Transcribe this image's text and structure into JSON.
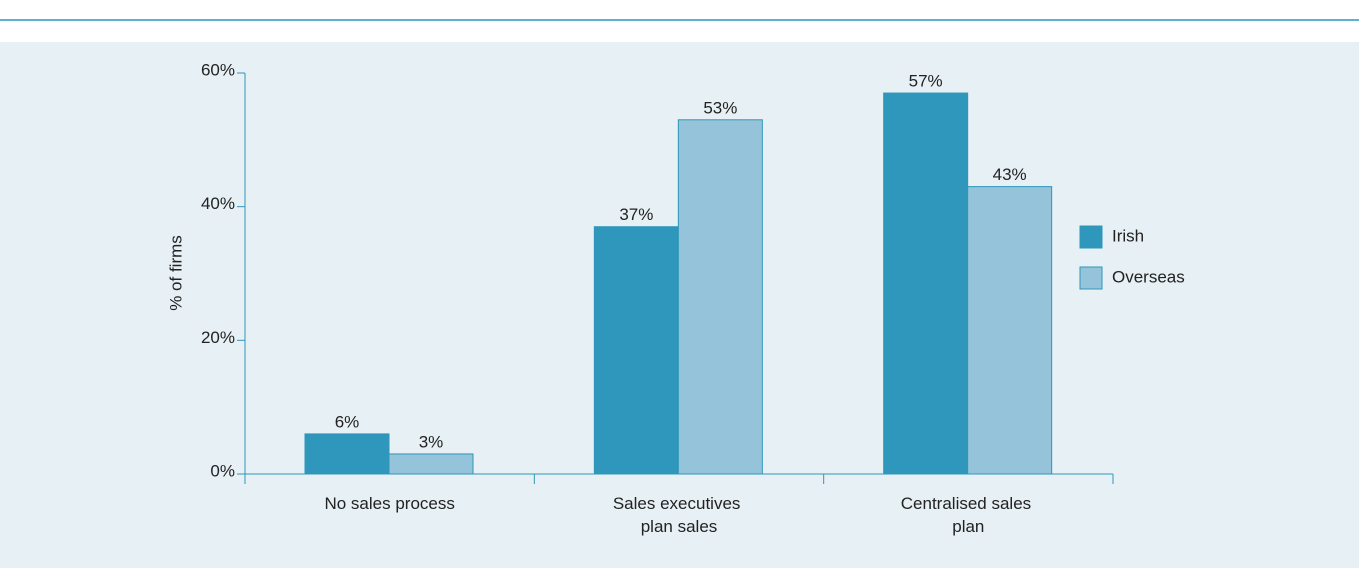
{
  "chart_data": {
    "type": "bar",
    "y_label": "% of firms",
    "categories": [
      "No sales process",
      "Sales executives plan sales",
      "Centralised sales plan"
    ],
    "series": [
      {
        "name": "Irish",
        "color": "#2e97bb",
        "values": [
          6,
          37,
          57
        ],
        "value_labels": [
          "6%",
          "37%",
          "57%"
        ]
      },
      {
        "name": "Overseas",
        "color": "#95c3d9",
        "values": [
          3,
          53,
          43
        ],
        "value_labels": [
          "3%",
          "53%",
          "43%"
        ]
      }
    ],
    "ylim": [
      0,
      60
    ],
    "yticks": [
      {
        "value": 0,
        "label": "0%"
      },
      {
        "value": 20,
        "label": "20%"
      },
      {
        "value": 40,
        "label": "40%"
      },
      {
        "value": 60,
        "label": "60%"
      }
    ],
    "legend": "right"
  }
}
